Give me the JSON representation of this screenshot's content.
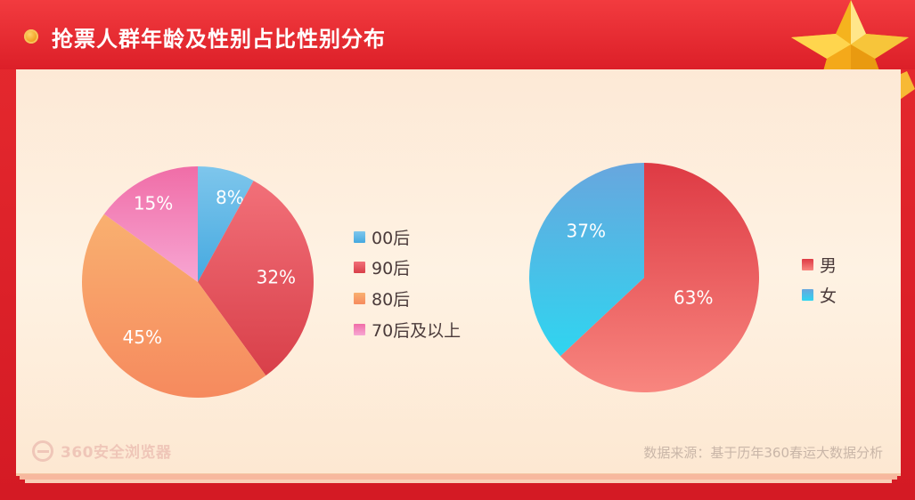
{
  "title": "抢票人群年龄及性别占比性别分布",
  "source": "数据来源：基于历年360春运大数据分析",
  "logo": {
    "text": "360安全浏览器",
    "icon": "e-browser-icon"
  },
  "colors": {
    "frame": "#e62a2f",
    "panel": "#fdeedd",
    "age_00": "#5ab4e6",
    "age_90": "#e8505a",
    "age_80": "#f99d63",
    "age_70": "#ee5fa0",
    "male": "#e8535a",
    "female": "#3bb8e4"
  },
  "chart_data": [
    {
      "type": "pie",
      "title": "",
      "categories": [
        "00后",
        "90后",
        "80后",
        "70后及以上"
      ],
      "values": [
        8,
        32,
        45,
        15
      ],
      "labels": [
        "8%",
        "32%",
        "45%",
        "15%"
      ],
      "legend_position": "right"
    },
    {
      "type": "pie",
      "title": "",
      "categories": [
        "男",
        "女"
      ],
      "values": [
        63,
        37
      ],
      "labels": [
        "63%",
        "37%"
      ],
      "legend_position": "right"
    }
  ]
}
